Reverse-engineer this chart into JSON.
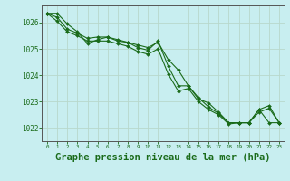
{
  "background_color": "#c8eef0",
  "grid_color": "#b8d8cc",
  "line_color": "#1a6b1a",
  "marker_color": "#1a6b1a",
  "xlabel": "Graphe pression niveau de la mer (hPa)",
  "xlabel_fontsize": 7.5,
  "ylim": [
    1021.5,
    1026.65
  ],
  "xlim": [
    -0.5,
    23.5
  ],
  "yticks": [
    1022,
    1023,
    1024,
    1025,
    1026
  ],
  "xticks": [
    0,
    1,
    2,
    3,
    4,
    5,
    6,
    7,
    8,
    9,
    10,
    11,
    12,
    13,
    14,
    15,
    16,
    17,
    18,
    19,
    20,
    21,
    22,
    23
  ],
  "series": [
    [
      1026.35,
      1026.35,
      1025.95,
      1025.65,
      1025.2,
      1025.35,
      1025.45,
      1025.3,
      1025.25,
      1025.15,
      1025.05,
      1025.25,
      1024.6,
      1024.2,
      1023.6,
      1023.1,
      1022.95,
      1022.6,
      1022.2,
      1022.2,
      1022.2,
      1022.7,
      1022.2,
      1022.2
    ],
    [
      1026.35,
      1026.2,
      1025.75,
      1025.6,
      1025.4,
      1025.45,
      1025.45,
      1025.35,
      1025.25,
      1025.05,
      1024.95,
      1025.3,
      1024.35,
      1023.6,
      1023.6,
      1023.15,
      1022.8,
      1022.55,
      1022.2,
      1022.2,
      1022.2,
      1022.7,
      1022.85,
      1022.2
    ],
    [
      1026.35,
      1026.05,
      1025.65,
      1025.5,
      1025.3,
      1025.3,
      1025.3,
      1025.2,
      1025.1,
      1024.9,
      1024.8,
      1025.0,
      1024.05,
      1023.4,
      1023.5,
      1023.0,
      1022.7,
      1022.5,
      1022.15,
      1022.2,
      1022.2,
      1022.6,
      1022.75,
      1022.2
    ]
  ]
}
